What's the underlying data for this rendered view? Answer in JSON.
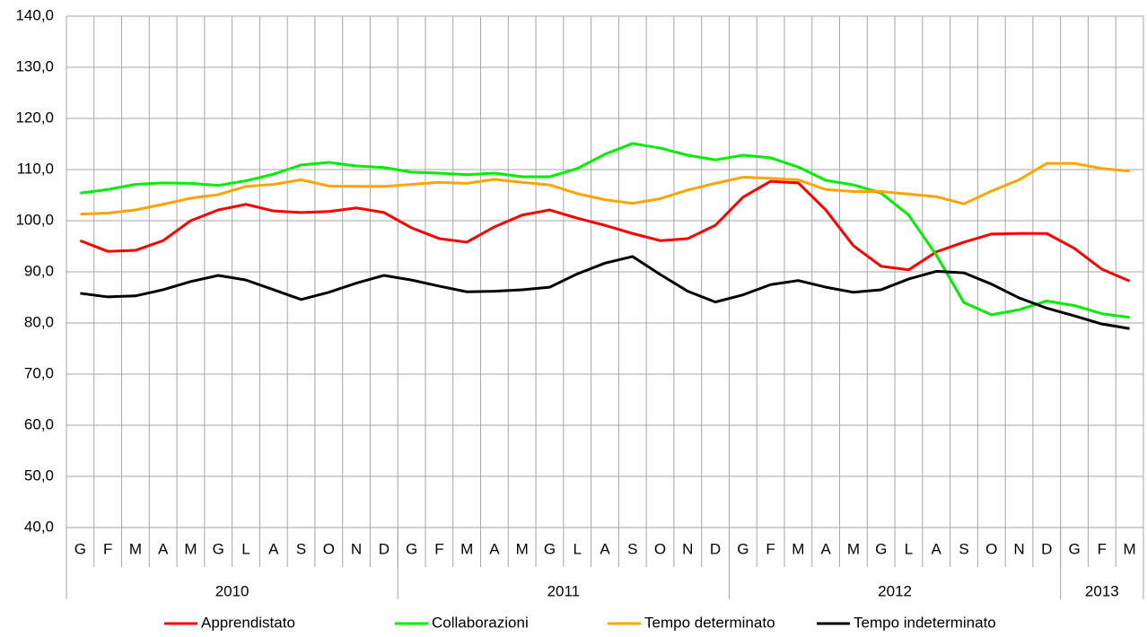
{
  "chart_data": {
    "type": "line",
    "categories": [
      "G",
      "F",
      "M",
      "A",
      "M",
      "G",
      "L",
      "A",
      "S",
      "O",
      "N",
      "D",
      "G",
      "F",
      "M",
      "A",
      "M",
      "G",
      "L",
      "A",
      "S",
      "O",
      "N",
      "D",
      "G",
      "F",
      "M",
      "A",
      "M",
      "G",
      "L",
      "A",
      "S",
      "O",
      "N",
      "D",
      "G",
      "F",
      "M"
    ],
    "year_groups": [
      {
        "label": "2010",
        "count": 12
      },
      {
        "label": "2011",
        "count": 12
      },
      {
        "label": "2012",
        "count": 12
      },
      {
        "label": "2013",
        "count": 3
      }
    ],
    "series": [
      {
        "name": "Apprendistato",
        "color": "#ff0000",
        "values": [
          96.1,
          94.0,
          94.2,
          96.1,
          100.0,
          102.1,
          103.2,
          101.9,
          101.6,
          101.8,
          102.5,
          101.6,
          98.6,
          96.5,
          95.8,
          98.8,
          101.1,
          102.1,
          100.5,
          99.1,
          97.5,
          96.1,
          96.5,
          99.1,
          104.6,
          107.7,
          107.4,
          102.1,
          95.1,
          91.1,
          90.4,
          93.9,
          95.8,
          97.4,
          97.5,
          97.5,
          94.6,
          90.5,
          88.2
        ]
      },
      {
        "name": "Collaborazioni",
        "color": "#00ee00",
        "values": [
          105.4,
          106.1,
          107.1,
          107.4,
          107.3,
          106.9,
          107.8,
          109.1,
          110.9,
          111.4,
          110.7,
          110.4,
          109.5,
          109.3,
          109.0,
          109.3,
          108.6,
          108.6,
          110.2,
          113.0,
          115.1,
          114.2,
          112.8,
          111.9,
          112.8,
          112.3,
          110.5,
          107.9,
          107.0,
          105.4,
          101.1,
          93.3,
          84.0,
          81.6,
          82.6,
          84.3,
          83.4,
          81.8,
          81.1
        ]
      },
      {
        "name": "Tempo determinato",
        "color": "#ffa500",
        "values": [
          101.3,
          101.5,
          102.1,
          103.2,
          104.4,
          105.1,
          106.7,
          107.1,
          108.0,
          106.8,
          106.7,
          106.7,
          107.1,
          107.5,
          107.3,
          108.1,
          107.5,
          107.0,
          105.3,
          104.1,
          103.4,
          104.3,
          106.0,
          107.3,
          108.5,
          108.3,
          108.0,
          106.1,
          105.7,
          105.7,
          105.2,
          104.7,
          103.3,
          105.8,
          108.0,
          111.2,
          111.2,
          110.2,
          109.7
        ]
      },
      {
        "name": "Tempo indeterminato",
        "color": "#000000",
        "values": [
          85.8,
          85.1,
          85.3,
          86.5,
          88.1,
          89.3,
          88.4,
          86.5,
          84.6,
          86.0,
          87.8,
          89.3,
          88.4,
          87.2,
          86.1,
          86.2,
          86.5,
          87.0,
          89.6,
          91.7,
          93.0,
          89.5,
          86.2,
          84.1,
          85.5,
          87.5,
          88.3,
          87.0,
          86.0,
          86.5,
          88.6,
          90.1,
          89.8,
          87.6,
          84.9,
          82.9,
          81.4,
          79.8,
          78.9
        ]
      }
    ],
    "ylim": [
      40,
      140
    ],
    "yticks": [
      {
        "value": 40,
        "label": "40,0"
      },
      {
        "value": 50,
        "label": "50,0"
      },
      {
        "value": 60,
        "label": "60,0"
      },
      {
        "value": 70,
        "label": "70,0"
      },
      {
        "value": 80,
        "label": "80,0"
      },
      {
        "value": 90,
        "label": "90,0"
      },
      {
        "value": 100,
        "label": "100,0"
      },
      {
        "value": 110,
        "label": "110,0"
      },
      {
        "value": 120,
        "label": "120,0"
      },
      {
        "value": 130,
        "label": "130,0"
      },
      {
        "value": 140,
        "label": "140,0"
      }
    ],
    "grid": true,
    "legend": "bottom"
  }
}
